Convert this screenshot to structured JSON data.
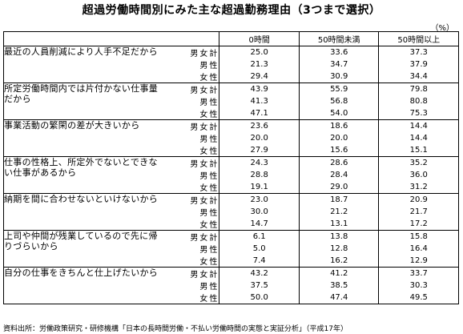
{
  "title": "超過労働時間別にみた主な超過勤務理由（3つまで選択）",
  "unit": "（%）",
  "columns": [
    "0時間",
    "50時間未満",
    "50時間以上"
  ],
  "groups": [
    {
      "reason": "最近の人員削減により人手不足だから",
      "rows": [
        {
          "sex": "男女計",
          "values": [
            "25.0",
            "33.6",
            "37.3"
          ]
        },
        {
          "sex": "男性",
          "values": [
            "21.3",
            "34.7",
            "37.9"
          ]
        },
        {
          "sex": "女性",
          "values": [
            "29.4",
            "30.9",
            "34.4"
          ]
        }
      ]
    },
    {
      "reason": "所定労働時間内では片付かない仕事量だから",
      "rows": [
        {
          "sex": "男女計",
          "values": [
            "43.9",
            "55.9",
            "79.8"
          ]
        },
        {
          "sex": "男性",
          "values": [
            "41.3",
            "56.8",
            "80.8"
          ]
        },
        {
          "sex": "女性",
          "values": [
            "47.1",
            "54.0",
            "75.3"
          ]
        }
      ]
    },
    {
      "reason": "事業活動の繁閑の差が大きいから",
      "rows": [
        {
          "sex": "男女計",
          "values": [
            "23.6",
            "18.6",
            "14.4"
          ]
        },
        {
          "sex": "男性",
          "values": [
            "20.0",
            "20.0",
            "14.4"
          ]
        },
        {
          "sex": "女性",
          "values": [
            "27.9",
            "15.6",
            "15.1"
          ]
        }
      ]
    },
    {
      "reason": "仕事の性格上、所定外でないとできない仕事があるから",
      "rows": [
        {
          "sex": "男女計",
          "values": [
            "24.3",
            "28.6",
            "35.2"
          ]
        },
        {
          "sex": "男性",
          "values": [
            "28.8",
            "28.4",
            "36.0"
          ]
        },
        {
          "sex": "女性",
          "values": [
            "19.1",
            "29.0",
            "31.2"
          ]
        }
      ]
    },
    {
      "reason": "納期を間に合わせないといけないから",
      "rows": [
        {
          "sex": "男女計",
          "values": [
            "23.0",
            "18.7",
            "20.9"
          ]
        },
        {
          "sex": "男性",
          "values": [
            "30.0",
            "21.2",
            "21.7"
          ]
        },
        {
          "sex": "女性",
          "values": [
            "14.7",
            "13.1",
            "17.2"
          ]
        }
      ]
    },
    {
      "reason": "上司や仲間が残業しているので先に帰りづらいから",
      "rows": [
        {
          "sex": "男女計",
          "values": [
            "6.1",
            "13.8",
            "15.8"
          ]
        },
        {
          "sex": "男性",
          "values": [
            "5.0",
            "12.8",
            "16.4"
          ]
        },
        {
          "sex": "女性",
          "values": [
            "7.4",
            "16.2",
            "12.9"
          ]
        }
      ]
    },
    {
      "reason": "自分の仕事をきちんと仕上げたいから",
      "rows": [
        {
          "sex": "男女計",
          "values": [
            "43.2",
            "41.2",
            "33.7"
          ]
        },
        {
          "sex": "男性",
          "values": [
            "37.5",
            "38.5",
            "30.3"
          ]
        },
        {
          "sex": "女性",
          "values": [
            "50.0",
            "47.4",
            "49.5"
          ]
        }
      ]
    }
  ],
  "source": "資料出所：労働政策研究・研修機構「日本の長時間労働・不払い労働時間の実態と実証分析」（平成17年）"
}
